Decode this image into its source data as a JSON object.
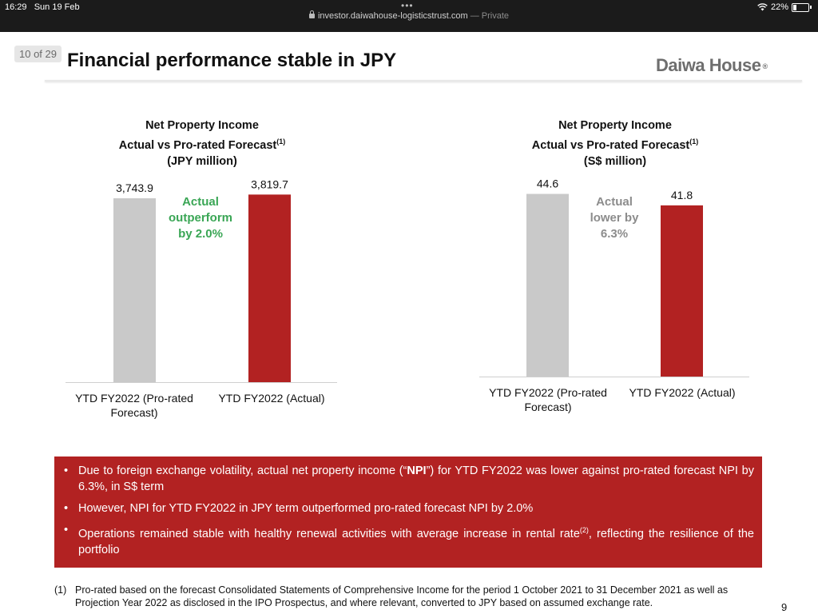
{
  "status_bar": {
    "time": "16:29",
    "date": "Sun 19 Feb",
    "battery": "22%",
    "battery_level": 0.22
  },
  "browser": {
    "url": "investor.daiwahouse-logisticstrust.com",
    "mode": "— Private"
  },
  "slide": {
    "page_indicator": "10 of 29",
    "title": "Financial performance stable in JPY",
    "logo": "Daiwa House",
    "logo_mark": "®"
  },
  "chart_data": [
    {
      "type": "bar",
      "title_line1": "Net Property Income",
      "title_line2": "Actual vs Pro-rated Forecast",
      "title_sup": "(1)",
      "title_line3": "(JPY million)",
      "categories": [
        "YTD FY2022 (Pro-rated Forecast)",
        "YTD FY2022 (Actual)"
      ],
      "category_lines": [
        [
          "YTD FY2022 (Pro-rated",
          "Forecast)"
        ],
        [
          "YTD FY2022 (Actual)"
        ]
      ],
      "values": [
        3743.9,
        3819.7
      ],
      "value_labels": [
        "3,743.9",
        "3,819.7"
      ],
      "bar_colors": [
        "#c9c9c9",
        "#b22222"
      ],
      "ylim": [
        0,
        4200
      ],
      "annotation": [
        "Actual",
        "outperform",
        "by 2.0%"
      ],
      "annotation_color": "#3aa655"
    },
    {
      "type": "bar",
      "title_line1": "Net Property Income",
      "title_line2": "Actual vs Pro-rated Forecast",
      "title_sup": "(1)",
      "title_line3": "(S$ million)",
      "categories": [
        "YTD FY2022 (Pro-rated Forecast)",
        "YTD FY2022 (Actual)"
      ],
      "category_lines": [
        [
          "YTD FY2022 (Pro-rated",
          "Forecast)"
        ],
        [
          "YTD FY2022 (Actual)"
        ]
      ],
      "values": [
        44.6,
        41.8
      ],
      "value_labels": [
        "44.6",
        "41.8"
      ],
      "bar_colors": [
        "#c9c9c9",
        "#b22222"
      ],
      "ylim": [
        0,
        49
      ],
      "annotation": [
        "Actual",
        "lower by",
        "6.3%"
      ],
      "annotation_color": "#8c8c8c"
    }
  ],
  "notes": {
    "b1_pre": "Due to foreign exchange volatility, actual net property income (“",
    "b1_bold": "NPI",
    "b1_post": "”) for YTD FY2022 was lower against pro-rated forecast NPI by 6.3%, in S$ term",
    "b2": "However, NPI for YTD FY2022 in JPY term outperformed pro-rated forecast NPI by 2.0%",
    "b3_pre": "Operations remained stable with healthy renewal activities with average increase in rental rate",
    "b3_sup": "(2)",
    "b3_post": ", reflecting the resilience of the portfolio"
  },
  "footnote": {
    "num": "(1)",
    "text": "Pro-rated based on the forecast Consolidated Statements of Comprehensive Income for the period 1 October 2021 to 31 December 2021 as well as Projection Year 2022 as disclosed in the IPO Prospectus, and where relevant, converted to JPY based on assumed exchange rate."
  },
  "corner_mark": "9"
}
